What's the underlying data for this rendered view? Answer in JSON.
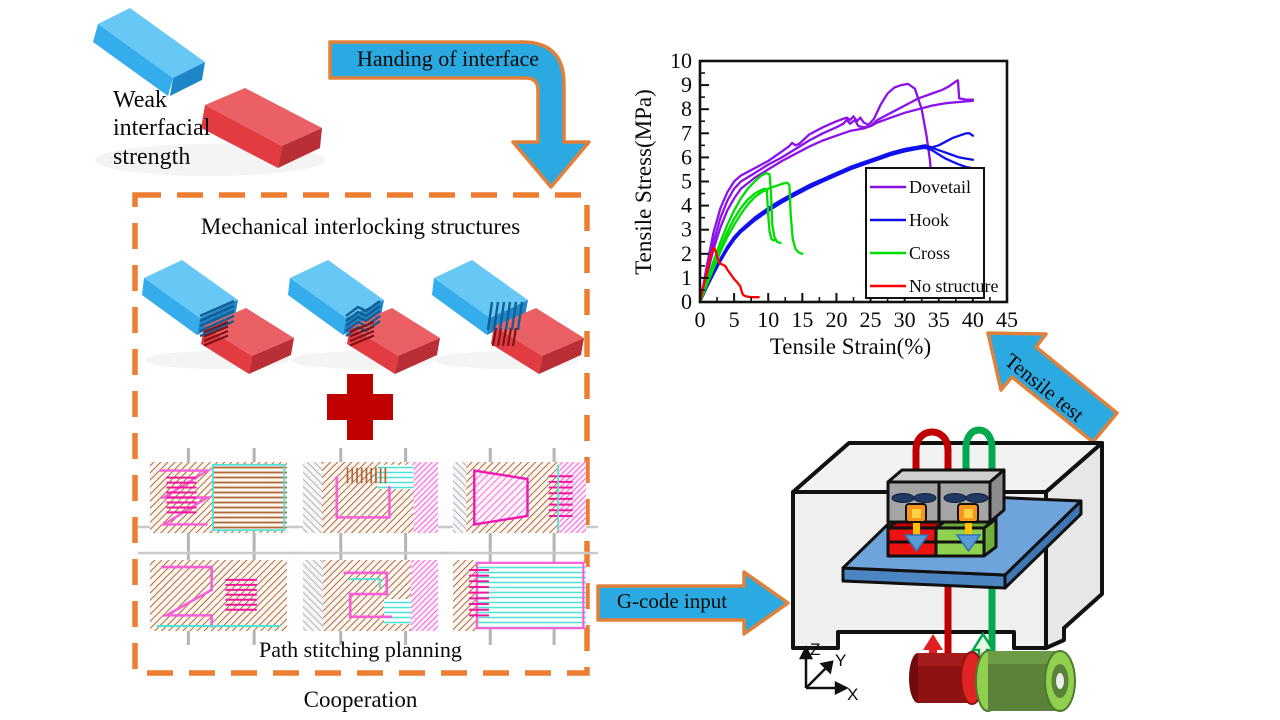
{
  "labels": {
    "weak": "Weak\ninterfacial\nstrength",
    "handing": "Handing of interface",
    "mechanical_title": "Mechanical interlocking structures",
    "path_planning": "Path stitching planning",
    "cooperation": "Cooperation",
    "gcode": "G-code input",
    "tensile_test": "Tensile test",
    "axis_triad": {
      "z": "Z",
      "y": "Y",
      "x": "X"
    }
  },
  "colors": {
    "arrow_fill": "#2BA9E1",
    "arrow_stroke": "#E0813B",
    "dashed_box": "#ED7D31",
    "plus_sign": "#C00000",
    "block_blue": "#35ACEC",
    "block_red": "#E23B41",
    "bed_blue": "#6FA3DC",
    "printed_red": "#EE1111",
    "printed_green": "#8FD14F",
    "filament_red": "#C00000",
    "filament_green": "#00A84F"
  },
  "interlock_box": {
    "structures": [
      "dovetail-joint",
      "hook-joint",
      "cross-joint"
    ],
    "panel_variants": [
      "n-path",
      "u-path",
      "d-path",
      "n2-path",
      "s-path",
      "lines-path"
    ]
  },
  "chart_data": {
    "type": "line",
    "title": "",
    "xlabel": "Tensile Strain(%)",
    "ylabel": "Tensile Stress(MPa)",
    "xlim": [
      0,
      45
    ],
    "ylim": [
      0,
      10
    ],
    "xticks": [
      0,
      5,
      10,
      15,
      20,
      25,
      30,
      35,
      40,
      45
    ],
    "yticks": [
      0,
      1,
      2,
      3,
      4,
      5,
      6,
      7,
      8,
      9,
      10
    ],
    "grid": false,
    "legend_position": "right-center",
    "series": [
      {
        "name": "Dovetail",
        "color": "#8A12E8",
        "curves": [
          [
            [
              0,
              0
            ],
            [
              0.5,
              0.7
            ],
            [
              1,
              1.5
            ],
            [
              2,
              2.9
            ],
            [
              3,
              3.9
            ],
            [
              4,
              4.55
            ],
            [
              5,
              5.0
            ],
            [
              6,
              5.25
            ],
            [
              7,
              5.4
            ],
            [
              8,
              5.55
            ],
            [
              9,
              5.7
            ],
            [
              10,
              5.85
            ],
            [
              12,
              6.25
            ],
            [
              13,
              6.45
            ],
            [
              13.5,
              6.6
            ],
            [
              14,
              6.5
            ],
            [
              14.5,
              6.55
            ],
            [
              16,
              6.95
            ],
            [
              18,
              7.25
            ],
            [
              20,
              7.5
            ],
            [
              21.5,
              7.65
            ],
            [
              22,
              7.55
            ],
            [
              22.5,
              7.7
            ],
            [
              23,
              7.5
            ],
            [
              23.5,
              7.65
            ],
            [
              24,
              7.45
            ],
            [
              24.7,
              7.35
            ],
            [
              25.5,
              7.6
            ],
            [
              26.5,
              8.2
            ],
            [
              27.5,
              8.65
            ],
            [
              28.5,
              8.9
            ],
            [
              29.5,
              9.0
            ],
            [
              30.5,
              9.05
            ],
            [
              31.5,
              8.85
            ],
            [
              32.5,
              8.0
            ],
            [
              33.2,
              6.9
            ],
            [
              33.7,
              5.9
            ],
            [
              34,
              4.9
            ],
            [
              34.2,
              4.1
            ]
          ],
          [
            [
              0,
              0
            ],
            [
              1,
              1.3
            ],
            [
              2,
              2.5
            ],
            [
              3,
              3.5
            ],
            [
              4,
              4.2
            ],
            [
              5,
              4.7
            ],
            [
              6,
              5.0
            ],
            [
              8,
              5.35
            ],
            [
              10,
              5.7
            ],
            [
              12,
              6.0
            ],
            [
              14,
              6.35
            ],
            [
              16,
              6.7
            ],
            [
              18,
              7.0
            ],
            [
              20,
              7.25
            ],
            [
              21,
              7.4
            ],
            [
              21.5,
              7.55
            ],
            [
              22,
              7.4
            ],
            [
              22.7,
              7.55
            ],
            [
              23.2,
              7.3
            ],
            [
              24,
              7.25
            ],
            [
              25,
              7.3
            ],
            [
              26,
              7.55
            ],
            [
              28,
              7.85
            ],
            [
              30,
              8.15
            ],
            [
              32,
              8.45
            ],
            [
              34,
              8.65
            ],
            [
              35.5,
              8.8
            ],
            [
              36.5,
              8.95
            ],
            [
              37.5,
              9.15
            ],
            [
              37.8,
              9.2
            ],
            [
              38,
              8.45
            ],
            [
              39,
              8.4
            ],
            [
              40,
              8.4
            ]
          ],
          [
            [
              0,
              0
            ],
            [
              1,
              1.1
            ],
            [
              2,
              2.2
            ],
            [
              3,
              3.1
            ],
            [
              4,
              3.8
            ],
            [
              5,
              4.3
            ],
            [
              6,
              4.7
            ],
            [
              8,
              5.15
            ],
            [
              10,
              5.5
            ],
            [
              12,
              5.85
            ],
            [
              14,
              6.15
            ],
            [
              16,
              6.45
            ],
            [
              18,
              6.7
            ],
            [
              20,
              6.9
            ],
            [
              22,
              7.1
            ],
            [
              24,
              7.2
            ],
            [
              25,
              7.3
            ],
            [
              26,
              7.45
            ],
            [
              28,
              7.65
            ],
            [
              30,
              7.85
            ],
            [
              32,
              8.0
            ],
            [
              34,
              8.15
            ],
            [
              36,
              8.25
            ],
            [
              38,
              8.3
            ],
            [
              40,
              8.35
            ]
          ]
        ]
      },
      {
        "name": "Hook",
        "color": "#1010EE",
        "curves": [
          [
            [
              0,
              0
            ],
            [
              1,
              0.65
            ],
            [
              2,
              1.25
            ],
            [
              3,
              1.8
            ],
            [
              4,
              2.3
            ],
            [
              5,
              2.7
            ],
            [
              6,
              3.0
            ],
            [
              8,
              3.5
            ],
            [
              10,
              3.9
            ],
            [
              12,
              4.25
            ],
            [
              14,
              4.55
            ],
            [
              16,
              4.85
            ],
            [
              18,
              5.1
            ],
            [
              20,
              5.35
            ],
            [
              22,
              5.6
            ],
            [
              24,
              5.8
            ],
            [
              26,
              6.0
            ],
            [
              28,
              6.2
            ],
            [
              30,
              6.35
            ],
            [
              31,
              6.4
            ],
            [
              32,
              6.45
            ],
            [
              33,
              6.5
            ],
            [
              33.5,
              6.45
            ],
            [
              34,
              6.42
            ],
            [
              35,
              6.5
            ],
            [
              36,
              6.65
            ],
            [
              37,
              6.8
            ],
            [
              38,
              6.9
            ],
            [
              39,
              7.0
            ],
            [
              39.5,
              7.0
            ],
            [
              40,
              6.9
            ]
          ],
          [
            [
              0,
              0
            ],
            [
              1,
              0.62
            ],
            [
              2,
              1.2
            ],
            [
              3,
              1.75
            ],
            [
              4,
              2.24
            ],
            [
              5,
              2.64
            ],
            [
              6,
              2.95
            ],
            [
              8,
              3.44
            ],
            [
              10,
              3.84
            ],
            [
              12,
              4.19
            ],
            [
              14,
              4.5
            ],
            [
              16,
              4.8
            ],
            [
              18,
              5.05
            ],
            [
              20,
              5.3
            ],
            [
              22,
              5.55
            ],
            [
              24,
              5.75
            ],
            [
              26,
              5.95
            ],
            [
              28,
              6.15
            ],
            [
              30,
              6.3
            ],
            [
              32,
              6.4
            ],
            [
              33,
              6.45
            ],
            [
              34,
              6.4
            ],
            [
              35,
              6.3
            ],
            [
              36,
              6.2
            ],
            [
              37,
              6.1
            ],
            [
              38,
              6.0
            ],
            [
              39,
              5.95
            ],
            [
              40,
              5.9
            ]
          ],
          [
            [
              0,
              0
            ],
            [
              1,
              0.6
            ],
            [
              2,
              1.16
            ],
            [
              3,
              1.7
            ],
            [
              4,
              2.18
            ],
            [
              5,
              2.58
            ],
            [
              6,
              2.9
            ],
            [
              8,
              3.38
            ],
            [
              10,
              3.78
            ],
            [
              12,
              4.13
            ],
            [
              14,
              4.44
            ],
            [
              16,
              4.74
            ],
            [
              18,
              5.0
            ],
            [
              20,
              5.25
            ],
            [
              22,
              5.5
            ],
            [
              24,
              5.7
            ],
            [
              26,
              5.9
            ],
            [
              28,
              6.1
            ],
            [
              30,
              6.25
            ],
            [
              32,
              6.36
            ],
            [
              33,
              6.4
            ],
            [
              34,
              6.3
            ],
            [
              35,
              6.12
            ],
            [
              36,
              5.95
            ],
            [
              37,
              5.82
            ],
            [
              38,
              5.7
            ],
            [
              39,
              5.6
            ],
            [
              40,
              5.55
            ]
          ]
        ]
      },
      {
        "name": "Cross",
        "color": "#00DD00",
        "curves": [
          [
            [
              0,
              0
            ],
            [
              1,
              0.85
            ],
            [
              2,
              1.7
            ],
            [
              3,
              2.5
            ],
            [
              4,
              3.2
            ],
            [
              5,
              3.8
            ],
            [
              6,
              4.3
            ],
            [
              7,
              4.7
            ],
            [
              8,
              5.0
            ],
            [
              9,
              5.25
            ],
            [
              9.7,
              5.35
            ],
            [
              10.2,
              5.3
            ],
            [
              10.4,
              4.5
            ],
            [
              10.6,
              3.2
            ],
            [
              10.9,
              2.7
            ],
            [
              11.3,
              2.5
            ],
            [
              11.8,
              2.45
            ]
          ],
          [
            [
              0,
              0
            ],
            [
              1,
              0.75
            ],
            [
              2,
              1.5
            ],
            [
              3,
              2.25
            ],
            [
              4,
              2.9
            ],
            [
              5,
              3.45
            ],
            [
              6,
              3.9
            ],
            [
              7,
              4.25
            ],
            [
              8,
              4.5
            ],
            [
              9,
              4.65
            ],
            [
              9.5,
              4.7
            ],
            [
              9.8,
              4.6
            ],
            [
              10,
              3.6
            ],
            [
              10.2,
              2.9
            ],
            [
              10.5,
              2.6
            ],
            [
              10.9,
              2.55
            ]
          ],
          [
            [
              0,
              0
            ],
            [
              1,
              0.7
            ],
            [
              2,
              1.4
            ],
            [
              3,
              2.1
            ],
            [
              4,
              2.7
            ],
            [
              5,
              3.2
            ],
            [
              6,
              3.65
            ],
            [
              7,
              4.05
            ],
            [
              8,
              4.35
            ],
            [
              9,
              4.55
            ],
            [
              10,
              4.7
            ],
            [
              11,
              4.8
            ],
            [
              12,
              4.9
            ],
            [
              12.8,
              4.95
            ],
            [
              13.1,
              4.85
            ],
            [
              13.3,
              3.6
            ],
            [
              13.6,
              2.6
            ],
            [
              14,
              2.2
            ],
            [
              14.5,
              2.05
            ],
            [
              15,
              2.0
            ]
          ]
        ]
      },
      {
        "name": "No structure",
        "color": "#FF0000",
        "curves": [
          [
            [
              0,
              0
            ],
            [
              0.4,
              0.5
            ],
            [
              0.8,
              1.0
            ],
            [
              1.2,
              1.5
            ],
            [
              1.6,
              1.95
            ],
            [
              1.9,
              2.2
            ],
            [
              2.1,
              2.25
            ],
            [
              2.3,
              2.1
            ],
            [
              2.6,
              1.8
            ],
            [
              2.9,
              1.6
            ],
            [
              3.3,
              1.55
            ],
            [
              3.7,
              1.5
            ],
            [
              4,
              1.35
            ],
            [
              4.5,
              1.15
            ],
            [
              5,
              0.95
            ],
            [
              5.5,
              0.8
            ],
            [
              5.9,
              0.65
            ],
            [
              6.1,
              0.45
            ],
            [
              6.3,
              0.3
            ],
            [
              6.6,
              0.25
            ],
            [
              7,
              0.22
            ],
            [
              7.5,
              0.2
            ],
            [
              8,
              0.2
            ],
            [
              8.6,
              0.2
            ]
          ]
        ]
      }
    ]
  }
}
